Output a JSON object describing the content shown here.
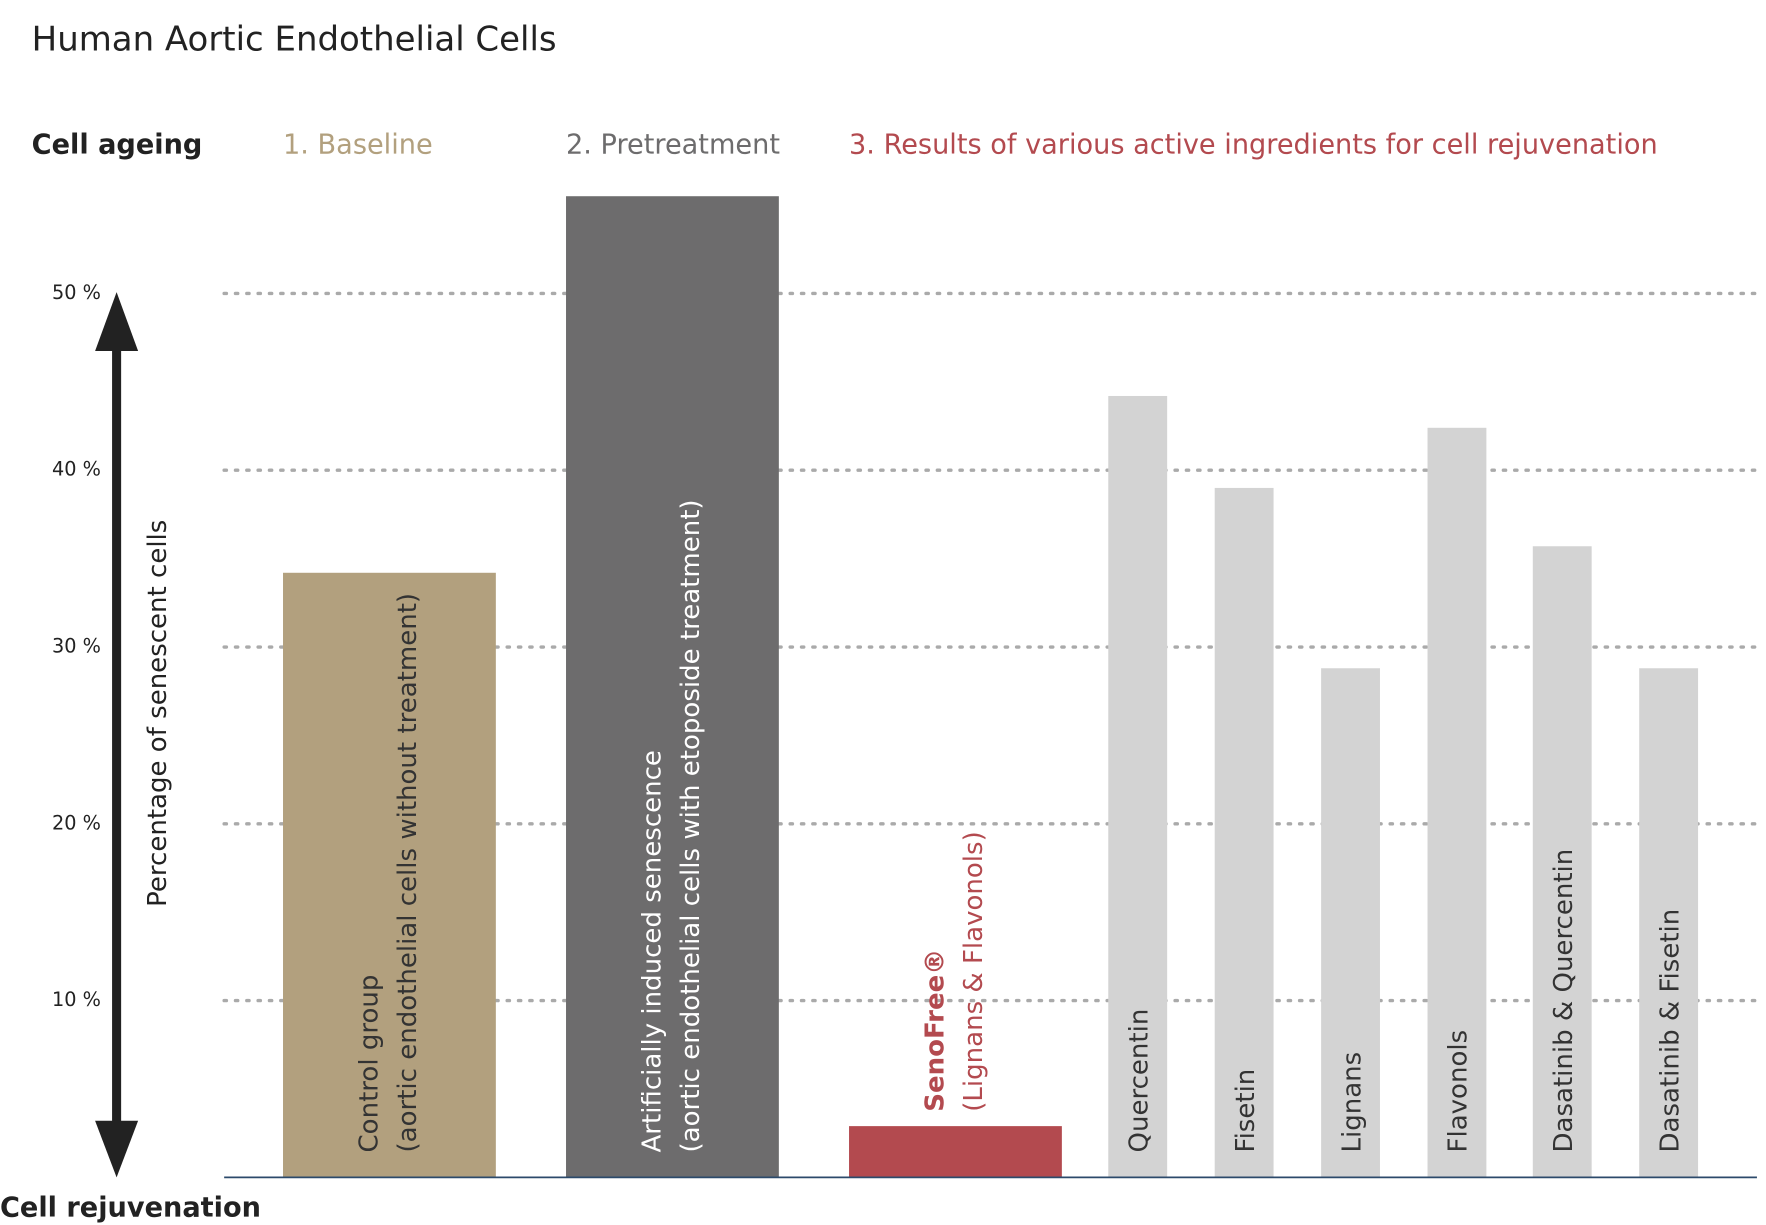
{
  "chart_data": {
    "type": "bar",
    "title": "Human Aortic Endothelial Cells",
    "top_label": "Cell ageing",
    "bottom_label": "Cell rejuvenation",
    "y_label": "Percentage of senescent cells",
    "groups": [
      {
        "label": "1. Baseline",
        "color": "#b2a07e"
      },
      {
        "label": "2. Pretreatment",
        "color": "#6d6c6d"
      },
      {
        "label": "3. Results of various active ingredients for cell rejuvenation",
        "color": "#b34a4f"
      }
    ],
    "categories": [
      "Control group",
      "Artificially induced senescence",
      "SenoFree®",
      "Quercentin",
      "Fisetin",
      "Lignans",
      "Flavonols",
      "Dasatinib & Quercentin",
      "Dasatinib & Fisetin"
    ],
    "category_notes": [
      "(aortic endothelial cells without treatment)",
      "(aortic endothelial cells with etoposide treatment)",
      "(Lignans & Flavonols)",
      null,
      null,
      null,
      null,
      null,
      null
    ],
    "values": [
      34.2,
      55.5,
      2.9,
      44.2,
      39,
      28.8,
      42.4,
      35.7,
      28.8
    ],
    "colors": [
      "#b2a07e",
      "#6d6c6d",
      "#b34a4f",
      "#d3d3d3",
      "#d3d3d3",
      "#d3d3d3",
      "#d3d3d3",
      "#d3d3d3",
      "#d3d3d3"
    ],
    "ylim": [
      0,
      60
    ],
    "yticks": [
      {
        "value": 10,
        "label": "10 %"
      },
      {
        "value": 20,
        "label": "20 %"
      },
      {
        "value": 30,
        "label": "30 %"
      },
      {
        "value": 40,
        "label": "40 %"
      },
      {
        "value": 50,
        "label": "50 %"
      }
    ],
    "grid": true
  }
}
